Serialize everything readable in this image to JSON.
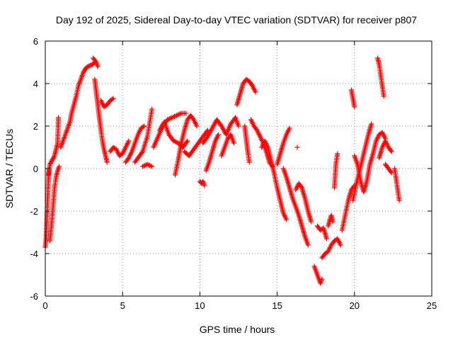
{
  "chart_data": {
    "type": "scatter",
    "title": "Day 192 of 2025, Sidereal Day-to-day VTEC variation (SDTVAR) for receiver p807",
    "xlabel": "GPS time / hours",
    "ylabel": "SDTVAR / TECUs",
    "xlim": [
      0,
      25
    ],
    "ylim": [
      -6,
      6
    ],
    "xticks": [
      0,
      5,
      10,
      15,
      20,
      25
    ],
    "yticks": [
      -6,
      -4,
      -2,
      0,
      2,
      4,
      6
    ],
    "xtick_labels": [
      "0",
      "5",
      "10",
      "15",
      "20",
      "25"
    ],
    "ytick_labels": [
      "-6",
      "-4",
      "-2",
      "0",
      "2",
      "4",
      "6"
    ],
    "grid": true,
    "marker": "+",
    "series": [
      {
        "name": "SDTVAR",
        "color": "#ff0000",
        "segments": [
          [
            [
              0.0,
              -3.7
            ],
            [
              0.05,
              -3.3
            ],
            [
              0.1,
              -2.4
            ],
            [
              0.15,
              -1.5
            ],
            [
              0.2,
              -0.6
            ],
            [
              0.25,
              0.0
            ]
          ],
          [
            [
              0.2,
              -0.3
            ],
            [
              0.3,
              0.2
            ],
            [
              0.45,
              0.4
            ],
            [
              0.6,
              0.6
            ],
            [
              0.7,
              0.9
            ],
            [
              0.8,
              1.2
            ],
            [
              0.85,
              2.4
            ]
          ],
          [
            [
              0.3,
              -3.4
            ],
            [
              0.4,
              -2.7
            ],
            [
              0.5,
              -1.8
            ],
            [
              0.6,
              -0.9
            ],
            [
              0.7,
              -0.4
            ],
            [
              0.8,
              -0.1
            ],
            [
              0.9,
              0.1
            ]
          ],
          [
            [
              1.0,
              1.0
            ],
            [
              1.15,
              1.3
            ],
            [
              1.3,
              1.6
            ],
            [
              1.45,
              1.9
            ],
            [
              1.6,
              2.2
            ],
            [
              1.7,
              2.6
            ],
            [
              1.85,
              3.0
            ],
            [
              2.0,
              3.4
            ],
            [
              2.15,
              3.9
            ],
            [
              2.3,
              4.2
            ],
            [
              2.45,
              4.5
            ],
            [
              2.6,
              4.7
            ],
            [
              2.75,
              4.8
            ],
            [
              2.9,
              4.85
            ],
            [
              3.05,
              4.9
            ],
            [
              3.2,
              5.0
            ]
          ],
          [
            [
              3.1,
              5.2
            ],
            [
              3.2,
              5.1
            ],
            [
              3.3,
              5.0
            ],
            [
              3.4,
              4.8
            ]
          ],
          [
            [
              3.2,
              4.2
            ],
            [
              3.3,
              3.6
            ],
            [
              3.4,
              3.0
            ],
            [
              3.5,
              2.4
            ],
            [
              3.6,
              1.8
            ],
            [
              3.7,
              1.3
            ],
            [
              3.8,
              0.9
            ],
            [
              3.9,
              0.6
            ],
            [
              4.0,
              0.3
            ]
          ],
          [
            [
              3.6,
              3.2
            ],
            [
              3.8,
              2.9
            ],
            [
              4.0,
              3.0
            ],
            [
              4.2,
              3.2
            ],
            [
              4.4,
              3.3
            ]
          ],
          [
            [
              4.2,
              0.8
            ],
            [
              4.4,
              1.0
            ],
            [
              4.6,
              0.9
            ],
            [
              4.8,
              0.6
            ],
            [
              5.0,
              0.7
            ],
            [
              5.2,
              1.0
            ],
            [
              5.4,
              1.3
            ]
          ],
          [
            [
              5.2,
              0.3
            ],
            [
              5.4,
              0.5
            ],
            [
              5.6,
              0.8
            ],
            [
              5.8,
              1.2
            ],
            [
              6.0,
              1.6
            ],
            [
              6.2,
              1.9
            ],
            [
              6.4,
              2.0
            ]
          ],
          [
            [
              5.8,
              0.3
            ],
            [
              6.0,
              0.5
            ],
            [
              6.3,
              0.8
            ],
            [
              6.6,
              1.5
            ],
            [
              6.9,
              2.8
            ]
          ],
          [
            [
              6.3,
              0.1
            ],
            [
              6.6,
              0.2
            ],
            [
              6.9,
              0.1
            ]
          ],
          [
            [
              7.0,
              1.0
            ],
            [
              7.3,
              1.5
            ],
            [
              7.6,
              2.0
            ],
            [
              7.9,
              2.3
            ],
            [
              8.2,
              2.4
            ],
            [
              8.5,
              2.5
            ],
            [
              8.8,
              2.6
            ],
            [
              9.1,
              2.6
            ]
          ],
          [
            [
              7.4,
              1.8
            ],
            [
              7.7,
              2.2
            ],
            [
              8.0,
              1.6
            ],
            [
              8.3,
              1.3
            ],
            [
              8.6,
              1.2
            ],
            [
              8.9,
              1.0
            ],
            [
              9.2,
              1.3
            ]
          ],
          [
            [
              8.4,
              -0.3
            ],
            [
              8.6,
              0.4
            ],
            [
              8.8,
              1.2
            ],
            [
              9.0,
              1.8
            ],
            [
              9.2,
              2.3
            ],
            [
              9.4,
              2.5
            ],
            [
              9.6,
              2.3
            ],
            [
              9.8,
              2.0
            ]
          ],
          [
            [
              9.0,
              0.8
            ],
            [
              9.3,
              0.6
            ],
            [
              9.6,
              0.9
            ],
            [
              9.9,
              1.2
            ],
            [
              10.2,
              1.5
            ],
            [
              10.5,
              1.8
            ]
          ],
          [
            [
              10.0,
              -0.6
            ],
            [
              10.1,
              -0.7
            ],
            [
              10.2,
              -0.6
            ],
            [
              10.3,
              -0.8
            ]
          ],
          [
            [
              10.2,
              1.2
            ],
            [
              10.5,
              1.5
            ],
            [
              10.8,
              1.9
            ],
            [
              11.1,
              2.3
            ],
            [
              11.4,
              2.0
            ],
            [
              11.7,
              1.6
            ],
            [
              12.0,
              2.1
            ],
            [
              12.3,
              2.4
            ],
            [
              12.5,
              2.0
            ]
          ],
          [
            [
              10.4,
              -0.1
            ],
            [
              10.6,
              0.3
            ],
            [
              10.8,
              0.8
            ],
            [
              11.0,
              1.3
            ],
            [
              11.2,
              1.6
            ]
          ],
          [
            [
              11.4,
              0.6
            ],
            [
              11.6,
              1.0
            ],
            [
              11.8,
              1.4
            ],
            [
              12.0,
              1.6
            ],
            [
              12.2,
              1.2
            ]
          ],
          [
            [
              12.4,
              3.0
            ],
            [
              12.6,
              3.5
            ],
            [
              12.8,
              4.0
            ],
            [
              13.0,
              4.2
            ],
            [
              13.2,
              4.1
            ],
            [
              13.4,
              3.9
            ],
            [
              13.6,
              3.6
            ]
          ],
          [
            [
              12.9,
              2.0
            ],
            [
              13.0,
              1.4
            ],
            [
              13.1,
              0.8
            ],
            [
              13.2,
              0.3
            ]
          ],
          [
            [
              13.3,
              2.3
            ],
            [
              13.5,
              2.0
            ],
            [
              13.7,
              1.8
            ],
            [
              13.9,
              1.5
            ],
            [
              14.1,
              1.2
            ],
            [
              14.3,
              0.8
            ],
            [
              14.5,
              0.3
            ],
            [
              14.7,
              0.1
            ]
          ],
          [
            [
              14.0,
              1.0
            ],
            [
              14.2,
              1.3
            ],
            [
              14.4,
              1.0
            ],
            [
              14.6,
              0.4
            ],
            [
              14.8,
              -0.2
            ],
            [
              15.0,
              -0.9
            ],
            [
              15.2,
              -1.5
            ],
            [
              15.4,
              -2.1
            ],
            [
              15.6,
              -2.4
            ]
          ],
          [
            [
              15.0,
              0.2
            ],
            [
              15.2,
              0.7
            ],
            [
              15.4,
              1.2
            ],
            [
              15.6,
              1.6
            ],
            [
              15.8,
              1.9
            ]
          ],
          [
            [
              15.4,
              0.0
            ],
            [
              15.6,
              -0.4
            ],
            [
              15.8,
              -0.9
            ],
            [
              16.0,
              -1.4
            ],
            [
              16.2,
              -1.8
            ],
            [
              16.4,
              -2.2
            ],
            [
              16.6,
              -2.7
            ],
            [
              16.8,
              -3.2
            ],
            [
              17.0,
              -3.6
            ]
          ],
          [
            [
              16.2,
              -1.0
            ],
            [
              16.4,
              -0.7
            ],
            [
              16.6,
              -0.9
            ],
            [
              16.8,
              -1.4
            ],
            [
              17.0,
              -2.0
            ],
            [
              17.2,
              -2.5
            ]
          ],
          [
            [
              16.3,
              1.0
            ]
          ],
          [
            [
              17.4,
              -4.6
            ],
            [
              17.6,
              -5.0
            ],
            [
              17.8,
              -5.4
            ],
            [
              17.9,
              -5.2
            ]
          ],
          [
            [
              17.6,
              -2.7
            ],
            [
              17.8,
              -2.9
            ],
            [
              18.0,
              -2.8
            ],
            [
              18.2,
              -3.3
            ]
          ],
          [
            [
              17.9,
              -4.2
            ],
            [
              18.1,
              -4.0
            ],
            [
              18.3,
              -3.9
            ],
            [
              18.5,
              -3.6
            ],
            [
              18.7,
              -3.4
            ],
            [
              18.9,
              -3.3
            ],
            [
              19.1,
              -3.6
            ]
          ],
          [
            [
              18.3,
              -2.7
            ],
            [
              18.5,
              -2.2
            ],
            [
              18.6,
              -2.5
            ]
          ],
          [
            [
              18.7,
              -0.9
            ],
            [
              18.8,
              0.2
            ],
            [
              18.9,
              0.7
            ]
          ],
          [
            [
              19.2,
              -2.9
            ],
            [
              19.4,
              -2.2
            ],
            [
              19.6,
              -1.5
            ],
            [
              19.8,
              -1.0
            ],
            [
              20.0,
              -0.8
            ]
          ],
          [
            [
              19.8,
              3.7
            ],
            [
              19.9,
              3.3
            ],
            [
              20.0,
              2.9
            ]
          ],
          [
            [
              19.9,
              -1.5
            ],
            [
              20.1,
              -0.8
            ],
            [
              20.3,
              -0.2
            ],
            [
              20.5,
              0.4
            ],
            [
              20.7,
              1.0
            ],
            [
              20.9,
              1.6
            ],
            [
              21.1,
              2.1
            ]
          ],
          [
            [
              20.0,
              0.6
            ],
            [
              20.2,
              0.2
            ],
            [
              20.4,
              -0.6
            ],
            [
              20.6,
              -1.1
            ],
            [
              20.8,
              -0.6
            ],
            [
              21.0,
              0.2
            ],
            [
              21.2,
              0.7
            ],
            [
              21.4,
              1.3
            ],
            [
              21.6,
              1.6
            ],
            [
              21.8,
              1.7
            ],
            [
              22.0,
              1.4
            ]
          ],
          [
            [
              21.5,
              5.2
            ],
            [
              21.6,
              4.9
            ],
            [
              21.7,
              4.4
            ],
            [
              21.8,
              3.9
            ],
            [
              21.9,
              3.4
            ]
          ],
          [
            [
              21.6,
              0.5
            ],
            [
              21.8,
              1.0
            ],
            [
              22.0,
              1.3
            ],
            [
              22.2,
              1.0
            ],
            [
              22.4,
              0.8
            ]
          ],
          [
            [
              22.0,
              0.2
            ],
            [
              22.2,
              0.0
            ],
            [
              22.4,
              -0.2
            ]
          ],
          [
            [
              22.6,
              0.0
            ],
            [
              22.7,
              -0.5
            ],
            [
              22.8,
              -1.0
            ],
            [
              22.9,
              -1.5
            ]
          ]
        ]
      }
    ]
  }
}
